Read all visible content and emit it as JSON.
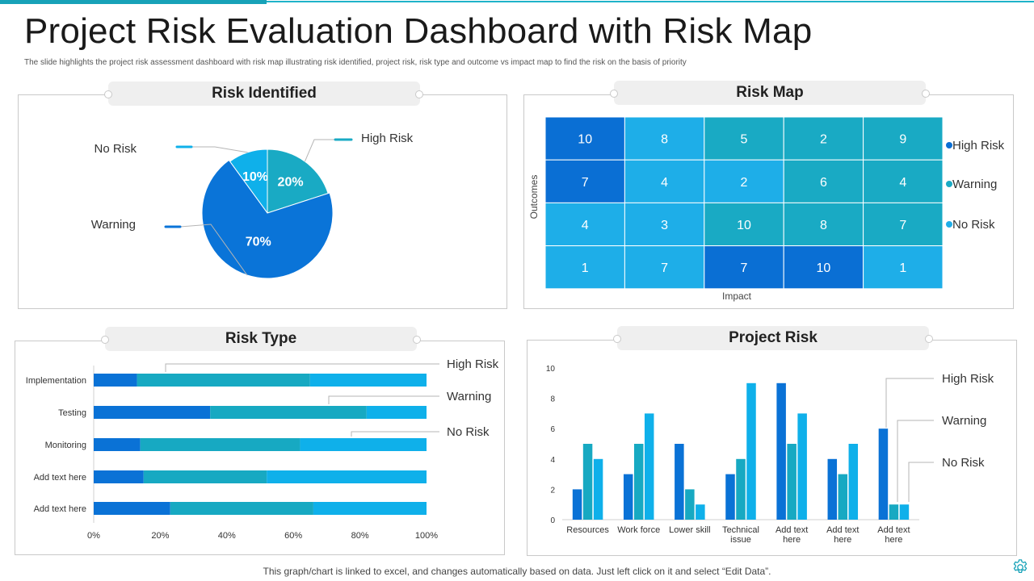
{
  "title": "Project Risk Evaluation Dashboard with Risk Map",
  "subtitle": "The slide highlights the project risk assessment dashboard with risk map illustrating risk identified, project risk, risk type and outcome vs impact map to find the risk on the basis of priority",
  "footer": "This graph/chart is linked to excel,  and changes automatically based on data. Just left click on it and select “Edit Data”.",
  "icons": {
    "settings": "gear-icon"
  },
  "colors": {
    "high_risk": "#0a6fd4",
    "warning": "#19aac4",
    "no_risk": "#0fb0ea",
    "cell_default": "#1eaee8"
  },
  "panels": {
    "risk_identified": "Risk  Identified",
    "risk_map": "Risk Map",
    "risk_type": "Risk Type",
    "project_risk": "Project Risk"
  },
  "chart_data": [
    {
      "type": "pie",
      "title": "Risk  Identified",
      "slices": [
        {
          "label": "Warning",
          "value": 70,
          "display": "70%",
          "color": "#0a74d8"
        },
        {
          "label": "No Risk",
          "value": 10,
          "display": "10%",
          "color": "#0fb0ea"
        },
        {
          "label": "High Risk",
          "value": 20,
          "display": "20%",
          "color": "#19aac4"
        }
      ]
    },
    {
      "type": "heatmap",
      "title": "Risk Map",
      "xlabel": "Impact",
      "ylabel": "Outcomes",
      "rows": [
        [
          10,
          8,
          5,
          2,
          9
        ],
        [
          7,
          4,
          2,
          6,
          4
        ],
        [
          4,
          3,
          10,
          8,
          7
        ],
        [
          1,
          7,
          7,
          10,
          1
        ]
      ],
      "cell_colors": [
        [
          "#0a6fd4",
          "#1eaee8",
          "#19aac4",
          "#19aac4",
          "#19aac4"
        ],
        [
          "#0a6fd4",
          "#1eaee8",
          "#1eaee8",
          "#19aac4",
          "#19aac4"
        ],
        [
          "#1eaee8",
          "#1eaee8",
          "#19aac4",
          "#19aac4",
          "#19aac4"
        ],
        [
          "#1eaee8",
          "#1eaee8",
          "#0a6fd4",
          "#0a6fd4",
          "#1eaee8"
        ]
      ],
      "legend": [
        {
          "label": "High Risk",
          "color": "#0a6fd4"
        },
        {
          "label": "Warning",
          "color": "#19aac4"
        },
        {
          "label": "No Risk",
          "color": "#1eaee8"
        }
      ],
      "legend_position": "right"
    },
    {
      "type": "bar",
      "orientation": "horizontal",
      "stacked": true,
      "title": "Risk Type",
      "categories": [
        "Implementation",
        "Testing",
        "Monitoring",
        "Add text here",
        "Add text here"
      ],
      "series": [
        {
          "name": "High Risk",
          "color": "#0a72d6",
          "values": [
            13,
            35,
            14,
            15,
            23
          ]
        },
        {
          "name": "Warning",
          "color": "#17a9c2",
          "values": [
            52,
            47,
            48,
            37,
            43
          ]
        },
        {
          "name": "No Risk",
          "color": "#0fb0ea",
          "values": [
            35,
            18,
            38,
            48,
            34
          ]
        }
      ],
      "xlim": [
        0,
        100
      ],
      "xticks": [
        "0%",
        "20%",
        "40%",
        "60%",
        "80%",
        "100%"
      ]
    },
    {
      "type": "bar",
      "orientation": "vertical",
      "title": "Project Risk",
      "categories": [
        "Resources",
        "Work force",
        "Lower skill",
        "Technical issue",
        "Add  text here",
        "Add  text here",
        "Add  text here"
      ],
      "series": [
        {
          "name": "High Risk",
          "color": "#0a72d6",
          "values": [
            2,
            3,
            5,
            3,
            9,
            4,
            6
          ]
        },
        {
          "name": "Warning",
          "color": "#17a9c2",
          "values": [
            5,
            5,
            2,
            4,
            5,
            3,
            1
          ]
        },
        {
          "name": "No Risk",
          "color": "#0fb0ea",
          "values": [
            4,
            7,
            1,
            9,
            7,
            5,
            1
          ]
        }
      ],
      "ylim": [
        0,
        10
      ],
      "yticks": [
        0,
        2,
        4,
        6,
        8,
        10
      ]
    }
  ]
}
